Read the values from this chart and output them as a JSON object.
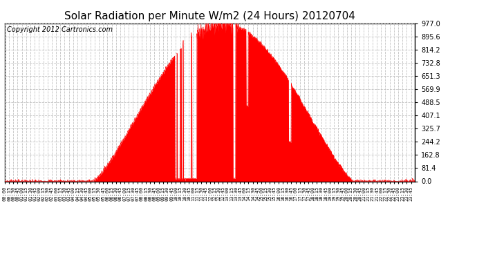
{
  "title": "Solar Radiation per Minute W/m2 (24 Hours) 20120704",
  "copyright": "Copyright 2012 Cartronics.com",
  "yticks": [
    0.0,
    81.4,
    162.8,
    244.2,
    325.7,
    407.1,
    488.5,
    569.9,
    651.3,
    732.8,
    814.2,
    895.6,
    977.0
  ],
  "ymax": 977.0,
  "ymin": 0.0,
  "fill_color": "#FF0000",
  "line_color": "#FF0000",
  "bg_color": "#FFFFFF",
  "grid_color": "#BBBBBB",
  "dashed_line_color": "#FF0000",
  "title_fontsize": 11,
  "copyright_fontsize": 7,
  "sunrise": 308,
  "sunset": 1225,
  "peak_minute": 790,
  "peak_value": 977.0
}
